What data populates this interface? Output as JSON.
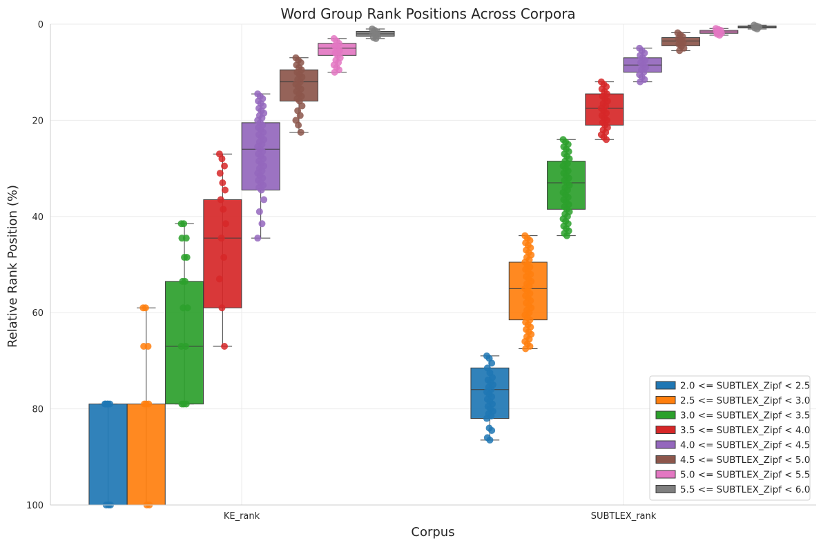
{
  "chart_data": {
    "type": "box",
    "title": "Word Group Rank Positions Across Corpora",
    "xlabel": "Corpus",
    "ylabel": "Relative Rank Position (%)",
    "categories": [
      "KE_rank",
      "SUBTLEX_rank"
    ],
    "ylim": [
      100,
      0
    ],
    "y_inverted": true,
    "yticks": [
      "0",
      "20",
      "40",
      "60",
      "80",
      "100"
    ],
    "grid": true,
    "legend_position": "bottom-right",
    "series": [
      {
        "name": "2.0 <= SUBTLEX_Zipf < 2.5",
        "color": "#1f77b4",
        "KE_rank": {
          "q1": 79,
          "median": 100,
          "q3": 100,
          "whisker_low": 79,
          "whisker_high": 100,
          "points": [
            79,
            79,
            79,
            79,
            79,
            100,
            100,
            100
          ]
        },
        "SUBTLEX_rank": {
          "q1": 71.5,
          "median": 76,
          "q3": 82,
          "whisker_low": 69,
          "whisker_high": 86.5,
          "points": [
            69,
            69.5,
            70.5,
            71.5,
            72.5,
            73.5,
            74,
            74.5,
            75,
            75.5,
            76,
            76.5,
            77,
            77.5,
            78,
            78.5,
            79,
            79.5,
            80,
            80.5,
            81,
            81.5,
            82,
            84,
            84.5,
            86,
            86.5
          ]
        }
      },
      {
        "name": "2.5 <= SUBTLEX_Zipf < 3.0",
        "color": "#ff7f0e",
        "KE_rank": {
          "q1": 79,
          "median": 100,
          "q3": 100,
          "whisker_low": 59,
          "whisker_high": 100,
          "points": [
            59,
            59,
            67,
            67,
            79,
            79,
            79,
            100,
            100
          ]
        },
        "SUBTLEX_rank": {
          "q1": 49.5,
          "median": 55,
          "q3": 61.5,
          "whisker_low": 44,
          "whisker_high": 67.5,
          "points": [
            44,
            44.5,
            45,
            45.5,
            46,
            46.5,
            47,
            47.5,
            48,
            48.5,
            49,
            49.5,
            50,
            50.5,
            51,
            51.5,
            52,
            52.5,
            53,
            53.5,
            54,
            54.5,
            55,
            55.5,
            56,
            56.5,
            57,
            57.5,
            58,
            58.5,
            59,
            59.5,
            60,
            60.5,
            61,
            61.5,
            62,
            62.5,
            63,
            63.5,
            64,
            64.5,
            65,
            65.5,
            66,
            66.5,
            67,
            67.5
          ]
        }
      },
      {
        "name": "3.0 <= SUBTLEX_Zipf < 3.5",
        "color": "#2ca02c",
        "KE_rank": {
          "q1": 53.5,
          "median": 67,
          "q3": 79,
          "whisker_low": 41.5,
          "whisker_high": 79,
          "points": [
            41.5,
            41.5,
            44.5,
            44.5,
            48.5,
            48.5,
            53.5,
            53.5,
            59,
            59,
            67,
            67,
            79,
            79,
            79
          ]
        },
        "SUBTLEX_rank": {
          "q1": 28.5,
          "median": 33,
          "q3": 38.5,
          "whisker_low": 24,
          "whisker_high": 44,
          "points": [
            24,
            24.5,
            25,
            25.5,
            26,
            26.5,
            27,
            27.5,
            28,
            28.5,
            29,
            29.5,
            30,
            30.5,
            31,
            31.5,
            32,
            32.5,
            33,
            33.5,
            34,
            34.5,
            35,
            35.5,
            36,
            36.5,
            37,
            37.5,
            38,
            38.5,
            39,
            39.5,
            40,
            40.5,
            41,
            41.5,
            42,
            42.5,
            43,
            43.5,
            44
          ]
        }
      },
      {
        "name": "3.5 <= SUBTLEX_Zipf < 4.0",
        "color": "#d62728",
        "KE_rank": {
          "q1": 36.5,
          "median": 44.5,
          "q3": 59,
          "whisker_low": 27,
          "whisker_high": 67,
          "points": [
            27,
            28,
            29.5,
            31,
            33,
            34.5,
            36.5,
            38.5,
            41.5,
            44.5,
            48.5,
            53,
            59,
            67
          ]
        },
        "SUBTLEX_rank": {
          "q1": 14.5,
          "median": 17.5,
          "q3": 21,
          "whisker_low": 12,
          "whisker_high": 24,
          "points": [
            12,
            12.5,
            13,
            13.5,
            14,
            14.5,
            15,
            15.5,
            16,
            16.5,
            17,
            17.5,
            18,
            18.5,
            19,
            19.5,
            20,
            20.5,
            21,
            21.5,
            22,
            22.5,
            23,
            23.5,
            24
          ]
        }
      },
      {
        "name": "4.0 <= SUBTLEX_Zipf < 4.5",
        "color": "#9467bd",
        "KE_rank": {
          "q1": 20.5,
          "median": 26,
          "q3": 34.5,
          "whisker_low": 14.5,
          "whisker_high": 44.5,
          "points": [
            14.5,
            15,
            15.5,
            16,
            16.5,
            17,
            17.5,
            18,
            18.5,
            19,
            19.5,
            20,
            20.5,
            21,
            21.5,
            22,
            22.5,
            23,
            23.5,
            24,
            24.5,
            25,
            25.5,
            26,
            26.5,
            27,
            27.5,
            28,
            28.5,
            29,
            29.5,
            30,
            30.5,
            31,
            31.5,
            32,
            32.5,
            33,
            33.5,
            34,
            34.5,
            36.5,
            39,
            41.5,
            44.5
          ]
        },
        "SUBTLEX_rank": {
          "q1": 7,
          "median": 8.5,
          "q3": 10,
          "whisker_low": 5,
          "whisker_high": 12,
          "points": [
            5,
            5.5,
            6,
            6.5,
            7,
            7.5,
            8,
            8.5,
            9,
            9.5,
            10,
            10.5,
            11,
            11.5,
            12
          ]
        }
      },
      {
        "name": "4.5 <= SUBTLEX_Zipf < 5.0",
        "color": "#8c564b",
        "KE_rank": {
          "q1": 9.5,
          "median": 12,
          "q3": 16,
          "whisker_low": 7,
          "whisker_high": 22.5,
          "points": [
            7,
            7.5,
            8,
            8.5,
            9,
            9.5,
            10,
            10.5,
            11,
            11.5,
            12,
            12.5,
            13,
            13.5,
            14,
            14.5,
            15,
            15.5,
            16,
            17,
            18,
            19,
            20,
            21,
            22.5
          ]
        },
        "SUBTLEX_rank": {
          "q1": 2.8,
          "median": 3.5,
          "q3": 4.5,
          "whisker_low": 1.8,
          "whisker_high": 5.5,
          "points": [
            1.8,
            2.2,
            2.6,
            3,
            3.4,
            3.8,
            4.2,
            4.6,
            5,
            5.5
          ]
        }
      },
      {
        "name": "5.0 <= SUBTLEX_Zipf < 5.5",
        "color": "#e377c2",
        "KE_rank": {
          "q1": 4,
          "median": 5,
          "q3": 6.5,
          "whisker_low": 3,
          "whisker_high": 10,
          "points": [
            3,
            3.5,
            4,
            4.5,
            5,
            5.5,
            6,
            6.5,
            7,
            7.5,
            8,
            8.5,
            9,
            9.5,
            10
          ]
        },
        "SUBTLEX_rank": {
          "q1": 1.3,
          "median": 1.6,
          "q3": 1.9,
          "whisker_low": 0.9,
          "whisker_high": 2.3,
          "points": [
            0.9,
            1.1,
            1.3,
            1.5,
            1.7,
            1.9,
            2.1,
            2.3
          ]
        }
      },
      {
        "name": "5.5 <= SUBTLEX_Zipf < 6.0",
        "color": "#7f7f7f",
        "KE_rank": {
          "q1": 1.5,
          "median": 2,
          "q3": 2.5,
          "whisker_low": 1,
          "whisker_high": 3,
          "points": [
            1,
            1.3,
            1.6,
            1.9,
            2.2,
            2.5,
            2.8,
            3
          ]
        },
        "SUBTLEX_rank": {
          "q1": 0.4,
          "median": 0.6,
          "q3": 0.8,
          "whisker_low": 0.2,
          "whisker_high": 1,
          "points": [
            0.2,
            0.4,
            0.6,
            0.8,
            1
          ]
        }
      }
    ]
  }
}
